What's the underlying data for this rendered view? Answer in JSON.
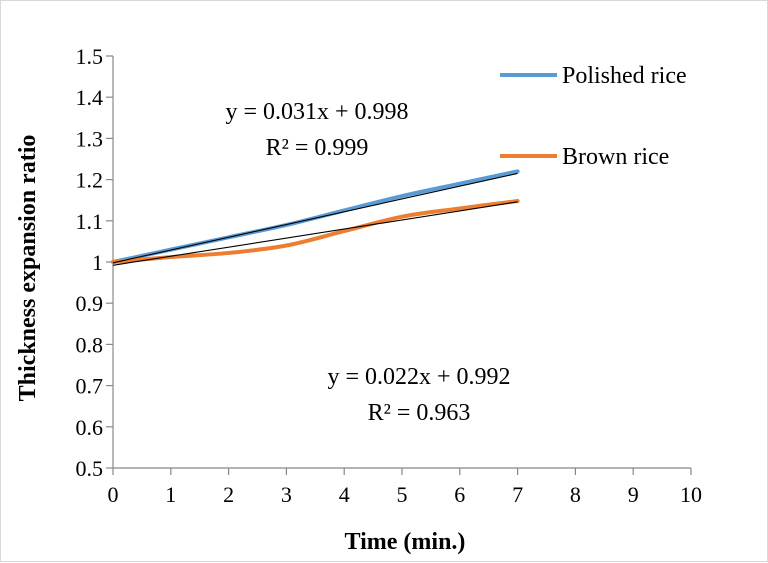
{
  "chart_data": {
    "type": "line",
    "title": "",
    "xlabel": "Time (min.)",
    "ylabel": "Thickness expansion ratio",
    "xlim": [
      0,
      10
    ],
    "ylim": [
      0.5,
      1.5
    ],
    "x_ticks": [
      "0",
      "1",
      "2",
      "3",
      "4",
      "5",
      "6",
      "7",
      "8",
      "9",
      "10"
    ],
    "y_ticks": [
      "0.5",
      "0.6",
      "0.7",
      "0.8",
      "0.9",
      "1",
      "1.1",
      "1.2",
      "1.3",
      "1.4",
      "1.5"
    ],
    "grid": false,
    "legend_position": "top-right",
    "series": [
      {
        "name": "Polished rice",
        "color": "#5b9bd5",
        "x": [
          0,
          1,
          2,
          3,
          4,
          5,
          6,
          7
        ],
        "values": [
          1.0,
          1.03,
          1.06,
          1.09,
          1.125,
          1.16,
          1.19,
          1.22
        ]
      },
      {
        "name": "Brown rice",
        "color": "#ed7d31",
        "x": [
          0,
          1,
          2,
          3,
          4,
          5,
          6,
          7
        ],
        "values": [
          1.0,
          1.012,
          1.022,
          1.04,
          1.075,
          1.11,
          1.13,
          1.148
        ]
      }
    ],
    "trendlines": [
      {
        "series": "Polished rice",
        "slope": 0.031,
        "intercept": 0.998,
        "color": "#000000",
        "x_range": [
          0,
          7
        ],
        "equation": "y = 0.031x + 0.998",
        "r2": "R² = 0.999",
        "label_position": "upper-left"
      },
      {
        "series": "Brown rice",
        "slope": 0.022,
        "intercept": 0.992,
        "color": "#000000",
        "x_range": [
          0,
          7
        ],
        "equation": "y = 0.022x + 0.992",
        "r2": "R² = 0.963",
        "label_position": "lower-middle"
      }
    ]
  }
}
